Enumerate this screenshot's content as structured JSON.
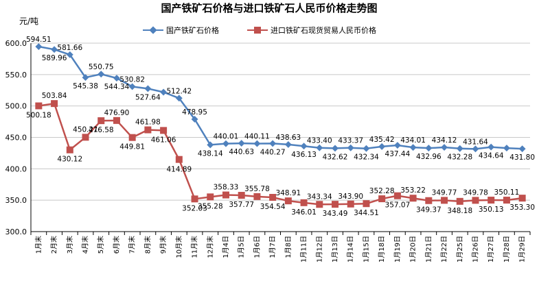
{
  "chart_data": {
    "type": "line",
    "title": "国产铁矿石价格与进口铁矿石人民币价格走势图",
    "ylabel": "元/吨",
    "ylim": [
      300,
      600
    ],
    "yticks": [
      "300.0",
      "350.0",
      "400.0",
      "450.0",
      "500.0",
      "550.0",
      "600.0"
    ],
    "grid": true,
    "legend_position": "top",
    "categories": [
      "1月末",
      "2月末",
      "3月末",
      "4月末",
      "5月末",
      "6月末",
      "7月末",
      "8月末",
      "9月末",
      "10月末",
      "11月末",
      "12月末",
      "1月4日",
      "1月5日",
      "1月6日",
      "1月7日",
      "1月8日",
      "1月11日",
      "1月12日",
      "1月13日",
      "1月14日",
      "1月15日",
      "1月18日",
      "1月19日",
      "1月20日",
      "1月21日",
      "1月22日",
      "1月25日",
      "1月26日",
      "1月27日",
      "1月28日",
      "1月29日"
    ],
    "series": [
      {
        "name": "国产铁矿石价格",
        "color": "#4f81bd",
        "marker": "diamond",
        "values": [
          594.51,
          589.96,
          581.66,
          545.38,
          550.75,
          544.34,
          530.82,
          527.64,
          522.0,
          512.42,
          478.95,
          438.14,
          440.01,
          440.63,
          440.11,
          440.27,
          438.63,
          436.13,
          433.4,
          432.62,
          433.37,
          432.34,
          435.42,
          437.44,
          434.01,
          432.96,
          434.12,
          432.28,
          431.64,
          434.64,
          433.0,
          431.8
        ],
        "labels": [
          "594.51",
          "589.96",
          "581.66",
          "545.38",
          "550.75",
          "544.34",
          "530.82",
          "527.64",
          "",
          "512.42",
          "478.95",
          "438.14",
          "440.01",
          "440.63",
          "440.11",
          "440.27",
          "438.63",
          "436.13",
          "433.40",
          "432.62",
          "433.37",
          "432.34",
          "435.42",
          "437.44",
          "434.01",
          "432.96",
          "434.12",
          "432.28",
          "431.64",
          "434.64",
          "",
          "431.80"
        ]
      },
      {
        "name": "进口铁矿石现货贸易人民币价格",
        "color": "#c0504d",
        "marker": "square",
        "values": [
          500.18,
          503.84,
          430.12,
          450.21,
          476.58,
          476.9,
          449.81,
          461.98,
          461.06,
          414.89,
          352.03,
          355.28,
          358.33,
          357.77,
          355.78,
          354.54,
          348.91,
          346.01,
          343.34,
          343.49,
          343.9,
          344.51,
          352.28,
          357.07,
          353.22,
          349.37,
          349.77,
          348.18,
          349.78,
          350.13,
          350.11,
          353.3
        ],
        "labels": [
          "500.18",
          "503.84",
          "430.12",
          "450.21",
          "476.58",
          "476.90",
          "449.81",
          "461.98",
          "461.06",
          "414.89",
          "352.03",
          "355.28",
          "358.33",
          "357.77",
          "355.78",
          "354.54",
          "348.91",
          "346.01",
          "343.34",
          "343.49",
          "343.90",
          "344.51",
          "352.28",
          "357.07",
          "353.22",
          "349.37",
          "349.77",
          "348.18",
          "349.78",
          "350.13",
          "350.11",
          "353.30"
        ]
      }
    ]
  }
}
